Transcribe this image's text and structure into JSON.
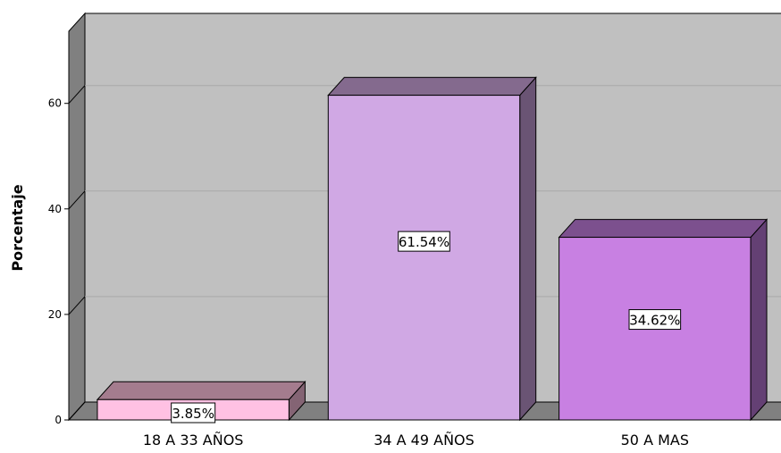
{
  "chart_data": {
    "type": "bar",
    "title": "",
    "xlabel": "",
    "ylabel": "Porcentaje",
    "ylim": [
      0,
      75
    ],
    "yticks": [
      0,
      20,
      40,
      60
    ],
    "grid": true,
    "legend": "none",
    "categories": [
      "18 A 33 AÑOS",
      "34 A 49 AÑOS",
      "50 A MAS"
    ],
    "values": [
      3.85,
      61.54,
      34.62
    ],
    "data_labels": [
      "3.85%",
      "61.54%",
      "34.62%"
    ],
    "colors": [
      "#FFC1E3",
      "#D0A8E4",
      "#C880E2"
    ],
    "top_colors": [
      "#A47C8E",
      "#846A8E",
      "#7C508E"
    ],
    "side_colors": [
      "#846474",
      "#6A5474",
      "#644074"
    ],
    "wall_color": "#C0C0C0",
    "floor_color": "#808080",
    "left_wall_color": "#808080"
  }
}
